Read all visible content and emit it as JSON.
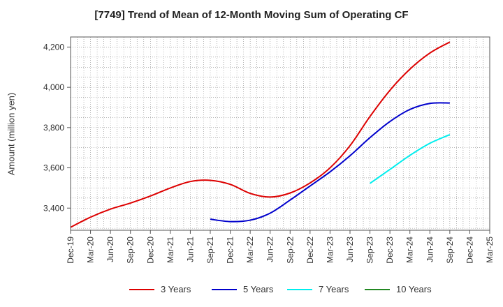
{
  "chart_data": {
    "type": "line",
    "title": "[7749]  Trend of Mean of 12-Month Moving Sum of Operating CF",
    "xlabel": "",
    "ylabel": "Amount (million yen)",
    "ylim": [
      3290,
      4250
    ],
    "yticks": [
      3400,
      3600,
      3800,
      4000,
      4200
    ],
    "ytick_labels": [
      "3,400",
      "3,600",
      "3,800",
      "4,000",
      "4,200"
    ],
    "xtick_labels": [
      "Dec-19",
      "Mar-20",
      "Jun-20",
      "Sep-20",
      "Dec-20",
      "Mar-21",
      "Jun-21",
      "Sep-21",
      "Dec-21",
      "Mar-22",
      "Jun-22",
      "Sep-22",
      "Dec-22",
      "Mar-23",
      "Jun-23",
      "Sep-23",
      "Dec-23",
      "Mar-24",
      "Jun-24",
      "Sep-24",
      "Dec-24",
      "Mar-25"
    ],
    "x_index_note": "x is quarter index: 0 = Dec-19 ... 21 = Mar-25",
    "grid": true,
    "legend_position": "bottom",
    "series": [
      {
        "name": "3 Years",
        "color": "#dd0000",
        "x": [
          0,
          1,
          2,
          3,
          4,
          5,
          6,
          7,
          8,
          9,
          10,
          11,
          12,
          13,
          14,
          15,
          16,
          17,
          18,
          19
        ],
        "values": [
          3305,
          3355,
          3395,
          3425,
          3460,
          3500,
          3532,
          3538,
          3518,
          3473,
          3455,
          3475,
          3525,
          3600,
          3710,
          3855,
          3985,
          4090,
          4170,
          4225
        ]
      },
      {
        "name": "5 Years",
        "color": "#0000cc",
        "x": [
          7,
          8,
          9,
          10,
          11,
          12,
          13,
          14,
          15,
          16,
          17,
          18,
          19
        ],
        "values": [
          3345,
          3333,
          3340,
          3375,
          3440,
          3510,
          3580,
          3660,
          3750,
          3830,
          3890,
          3920,
          3922
        ]
      },
      {
        "name": "7 Years",
        "color": "#00eeee",
        "x": [
          15,
          16,
          17,
          18,
          19
        ],
        "values": [
          3523,
          3592,
          3662,
          3722,
          3765
        ]
      },
      {
        "name": "10 Years",
        "color": "#228822",
        "x": [],
        "values": []
      }
    ]
  }
}
